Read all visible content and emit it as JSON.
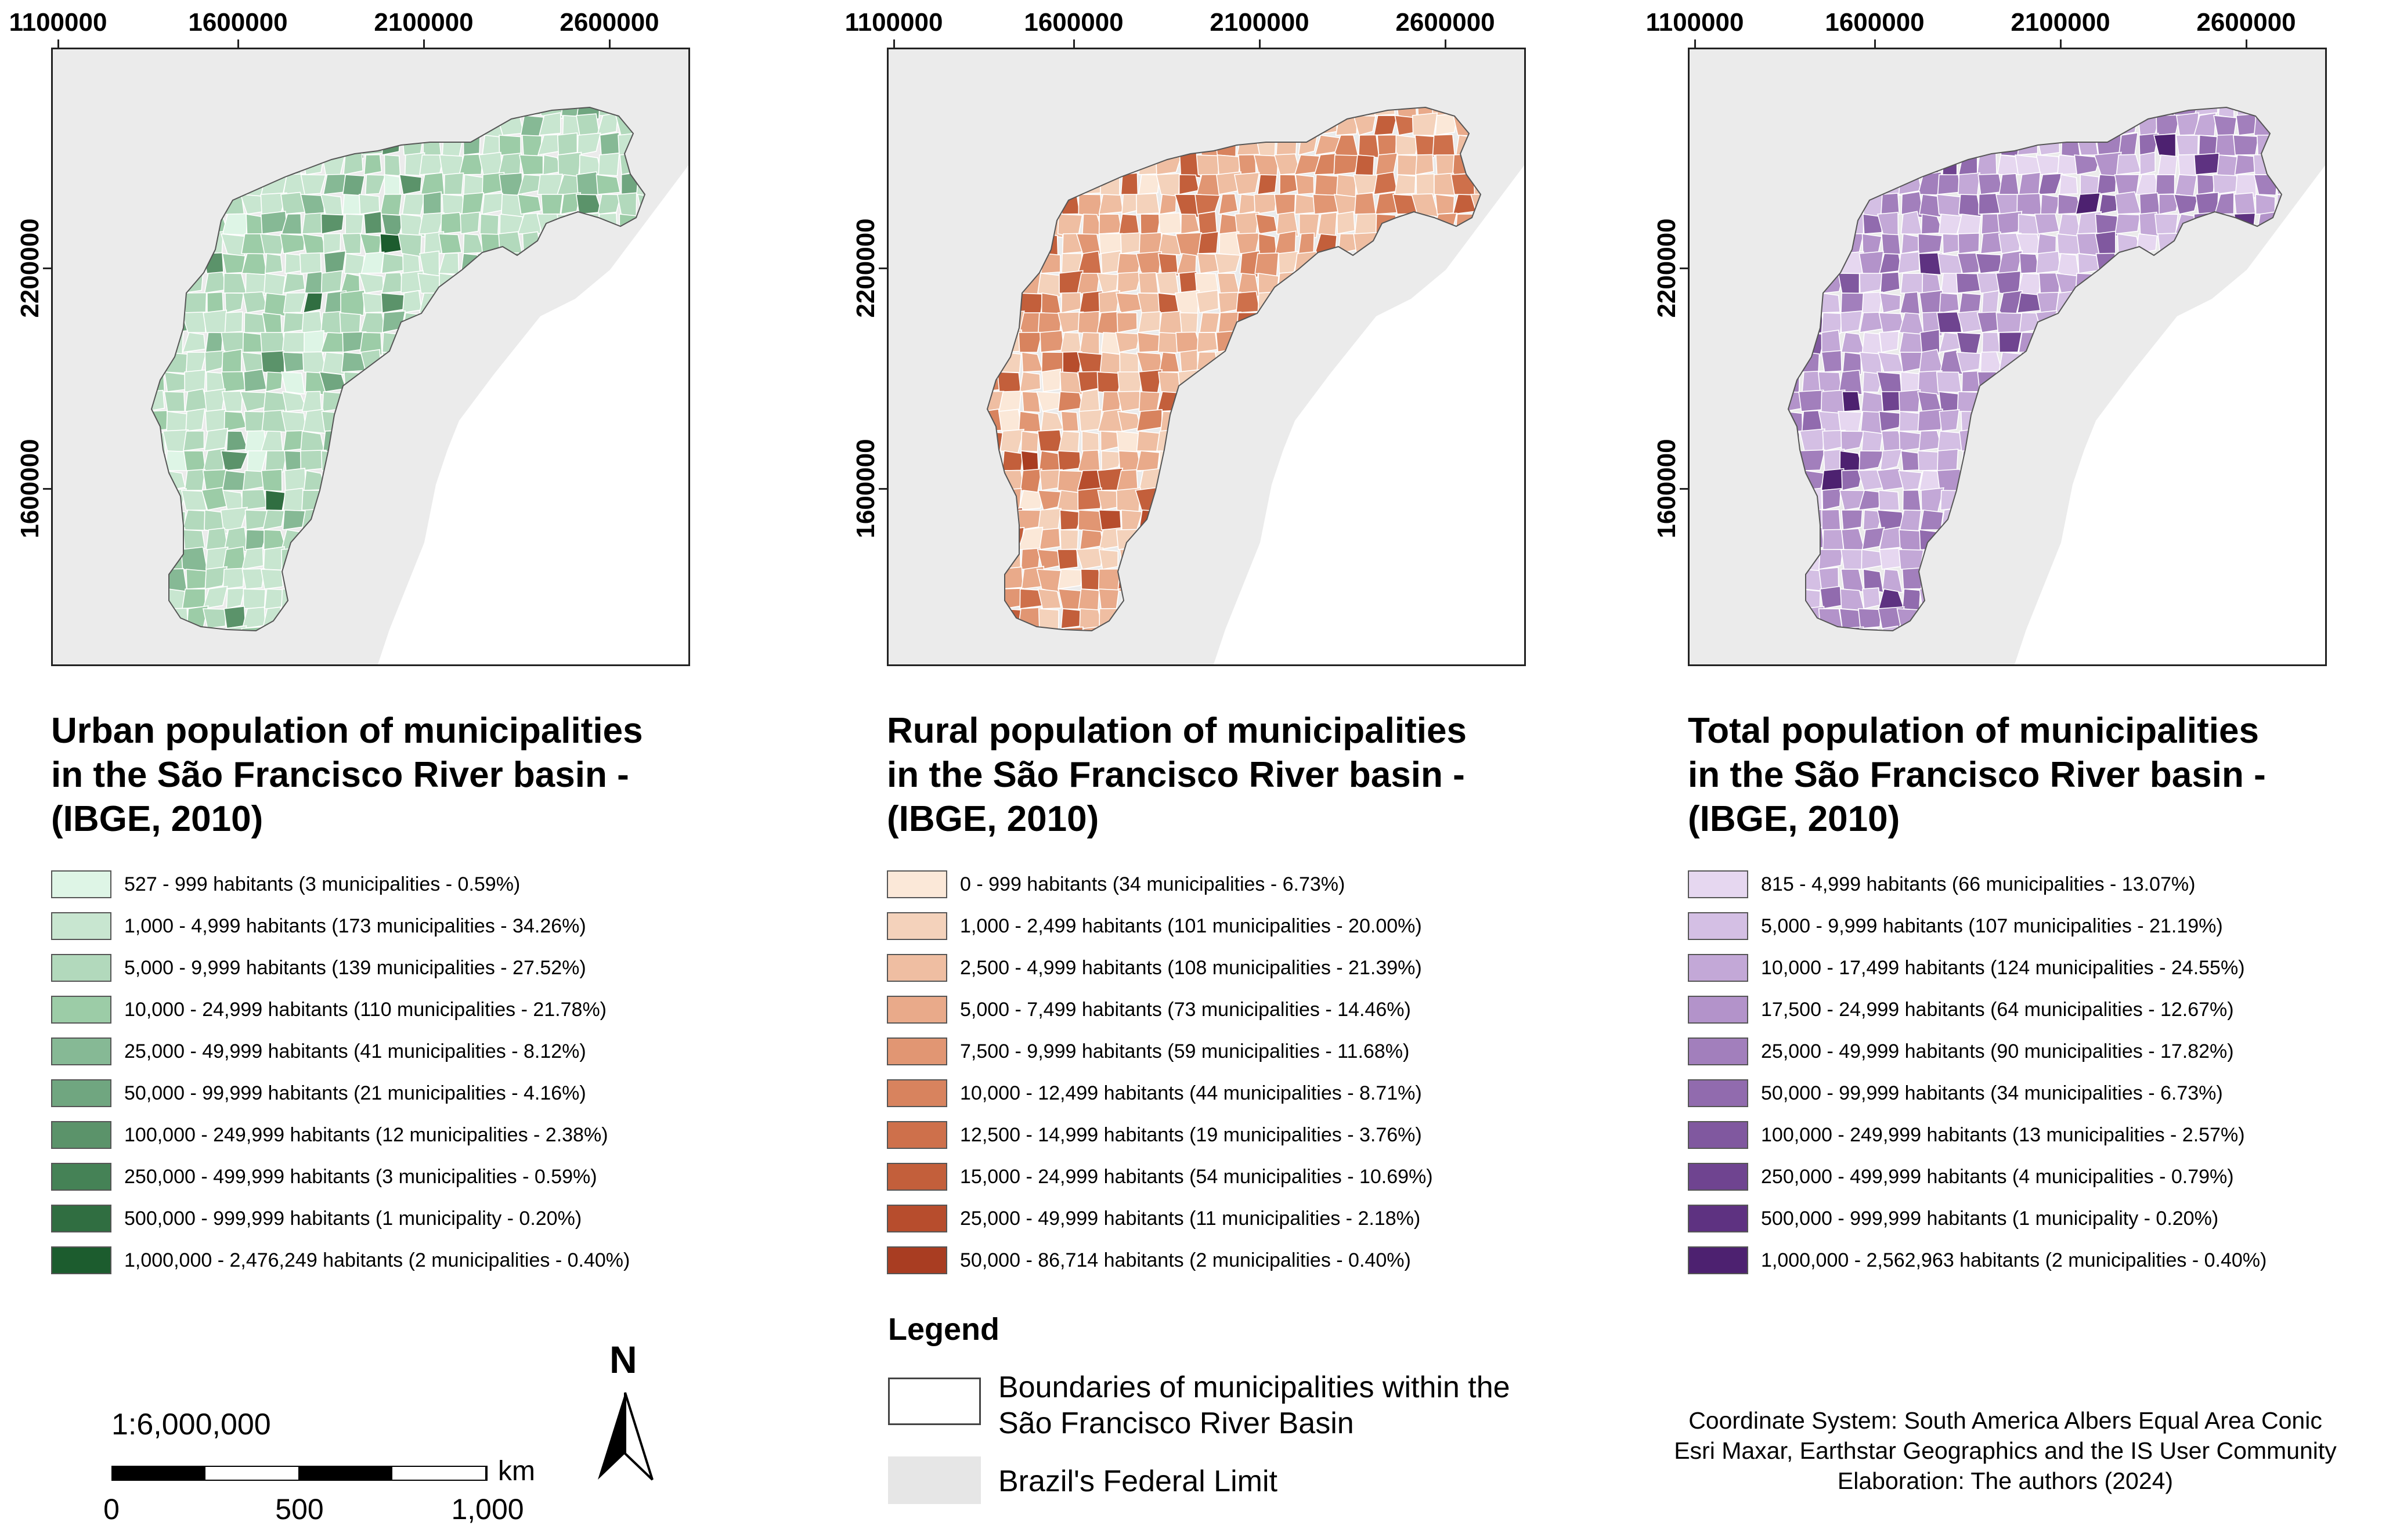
{
  "axes": {
    "x_ticks": [
      "1100000",
      "1600000",
      "2100000",
      "2600000"
    ],
    "y_ticks": [
      "2200000",
      "1600000"
    ]
  },
  "colors": {
    "background_land": "#ebebeb",
    "boundary_line": "#ffffff"
  },
  "panels": [
    {
      "id": "urban",
      "title_lines": [
        "Urban population of municipalities",
        "in the São Francisco River basin -",
        "(IBGE, 2010)"
      ],
      "classes": [
        {
          "label": "527 - 999 habitants (3 municipalities - 0.59%)",
          "color": "#def5e6"
        },
        {
          "label": "1,000 - 4,999 habitants (173 municipalities - 34.26%)",
          "color": "#c8e6d0"
        },
        {
          "label": "5,000 - 9,999 habitants (139 municipalities - 27.52%)",
          "color": "#b2d9bc"
        },
        {
          "label": "10,000 - 24,999 habitants (110 municipalities - 21.78%)",
          "color": "#9ccca7"
        },
        {
          "label": "25,000 - 49,999 habitants (41 municipalities - 8.12%)",
          "color": "#86b995"
        },
        {
          "label": "50,000 - 99,999 habitants (21 municipalities - 4.16%)",
          "color": "#70a680"
        },
        {
          "label": "100,000 - 249,999 habitants (12 municipalities - 2.38%)",
          "color": "#5b936a"
        },
        {
          "label": "250,000 - 499,999 habitants (3 municipalities - 0.59%)",
          "color": "#458256"
        },
        {
          "label": "500,000 - 999,999 habitants (1 municipality - 0.20%)",
          "color": "#306e41"
        },
        {
          "label": "1,000,000 - 2,476,249 habitants (2 municipalities - 0.40%)",
          "color": "#1c5c2e"
        }
      ]
    },
    {
      "id": "rural",
      "title_lines": [
        "Rural population of municipalities",
        "in the São Francisco River basin -",
        "(IBGE, 2010)"
      ],
      "classes": [
        {
          "label": "0 - 999 habitants (34 municipalities - 6.73%)",
          "color": "#fbe8d8"
        },
        {
          "label": "1,000 - 2,499 habitants (101 municipalities - 20.00%)",
          "color": "#f4d2bb"
        },
        {
          "label": "2,500 - 4,999 habitants (108 municipalities - 21.39%)",
          "color": "#efbea2"
        },
        {
          "label": "5,000 - 7,499 habitants (73 municipalities - 14.46%)",
          "color": "#e9aa8a"
        },
        {
          "label": "7,500 - 9,999 habitants (59 municipalities - 11.68%)",
          "color": "#e19673"
        },
        {
          "label": "10,000 - 12,499 habitants (44 municipalities - 8.71%)",
          "color": "#d8835e"
        },
        {
          "label": "12,500 - 14,999 habitants (19 municipalities - 3.76%)",
          "color": "#ce704b"
        },
        {
          "label": "15,000 - 24,999 habitants (54 municipalities - 10.69%)",
          "color": "#c35f3b"
        },
        {
          "label": "25,000 - 49,999 habitants (11 municipalities - 2.18%)",
          "color": "#b74d2d"
        },
        {
          "label": "50,000 - 86,714 habitants (2 municipalities - 0.40%)",
          "color": "#a93d22"
        }
      ]
    },
    {
      "id": "total",
      "title_lines": [
        "Total population of municipalities",
        "in the São Francisco River basin -",
        "(IBGE, 2010)"
      ],
      "classes": [
        {
          "label": "815 - 4,999 habitants (66 municipalities - 13.07%)",
          "color": "#e6d7f0"
        },
        {
          "label": "5,000 - 9,999 habitants (107 municipalities - 21.19%)",
          "color": "#d4bfe4"
        },
        {
          "label": "10,000 - 17,499 habitants (124 municipalities - 24.55%)",
          "color": "#c3a8d7"
        },
        {
          "label": "17,500 - 24,999 habitants (64 municipalities - 12.67%)",
          "color": "#b393ca"
        },
        {
          "label": "25,000 - 49,999 habitants (90 municipalities - 17.82%)",
          "color": "#a27fbc"
        },
        {
          "label": "50,000 - 99,999 habitants (34 municipalities - 6.73%)",
          "color": "#916bae"
        },
        {
          "label": "100,000 - 249,999 habitants (13 municipalities - 2.57%)",
          "color": "#80589f"
        },
        {
          "label": "250,000 - 499,999 habitants (4 municipalities - 0.79%)",
          "color": "#6f4490"
        },
        {
          "label": "500,000 - 999,999 habitants (1 municipality - 0.20%)",
          "color": "#5e3281"
        },
        {
          "label": "1,000,000 - 2,562,963 habitants (2 municipalities - 0.40%)",
          "color": "#4d2170"
        }
      ]
    }
  ],
  "scale": {
    "ratio": "1:6,000,000",
    "unit": "km",
    "labels": [
      "0",
      "500",
      "1,000"
    ]
  },
  "north": "N",
  "legend": {
    "title": "Legend",
    "boundary_label": "Boundaries of municipalities within the São Francisco River Basin",
    "federal_label": "Brazil's Federal Limit"
  },
  "credits": [
    "Coordinate System: South America Albers Equal Area Conic",
    "Esri Maxar, Earthstar Geographics and the IS User Community",
    "Elaboration: The authors (2024)"
  ]
}
